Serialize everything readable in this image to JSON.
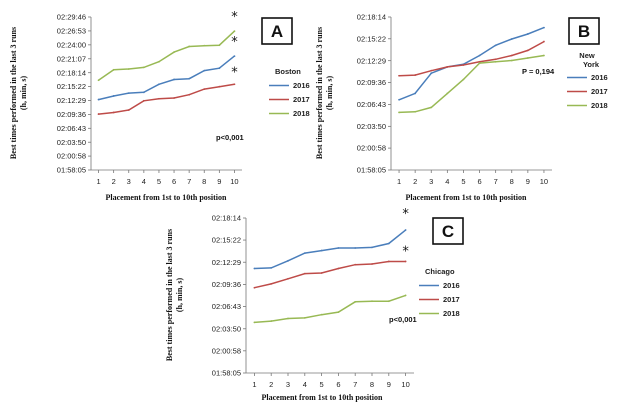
{
  "colors": {
    "2016": "#4a7ebb",
    "2017": "#be4b48",
    "2018": "#98b954"
  },
  "chart_data": [
    {
      "type": "line",
      "panel_label": "A",
      "legend_title": "Boston",
      "annotation": "p<0,001",
      "xlabel": "Placement from 1st to 10th position",
      "ylabel": "Best times performed in the last 3 runs (h, min, s)",
      "y_ticks": [
        "01:58:05",
        "02:00:58",
        "02:03:50",
        "02:06:43",
        "02:09:36",
        "02:12:29",
        "02:15:22",
        "02:18:14",
        "02:21:07",
        "02:24:00",
        "02:26:53",
        "02:29:46"
      ],
      "x": [
        1,
        2,
        3,
        4,
        5,
        6,
        7,
        8,
        9,
        10
      ],
      "ylim": [
        "01:58:05",
        "02:29:46"
      ],
      "series": [
        {
          "name": "2016",
          "values": [
            "02:12:40",
            "02:13:25",
            "02:14:00",
            "02:14:10",
            "02:15:50",
            "02:16:50",
            "02:17:00",
            "02:18:40",
            "02:19:10",
            "02:21:40"
          ],
          "star": true
        },
        {
          "name": "2017",
          "values": [
            "02:09:40",
            "02:10:00",
            "02:10:30",
            "02:12:25",
            "02:12:50",
            "02:13:00",
            "02:13:40",
            "02:14:50",
            "02:15:20",
            "02:15:50"
          ],
          "star": true
        },
        {
          "name": "2018",
          "values": [
            "02:16:40",
            "02:18:50",
            "02:19:00",
            "02:19:20",
            "02:20:30",
            "02:22:30",
            "02:23:40",
            "02:23:50",
            "02:23:55",
            "02:26:50"
          ],
          "star": true
        }
      ]
    },
    {
      "type": "line",
      "panel_label": "B",
      "legend_title": "New York",
      "annotation": "P = 0,194",
      "xlabel": "Placement from 1st to 10th position",
      "ylabel": "Best times performed in the last 3 runs (h, min, s)",
      "y_ticks": [
        "01:58:05",
        "02:00:58",
        "02:03:50",
        "02:06:43",
        "02:09:36",
        "02:12:29",
        "02:15:22",
        "02:18:14"
      ],
      "x": [
        1,
        2,
        3,
        4,
        5,
        6,
        7,
        8,
        9,
        10
      ],
      "ylim": [
        "01:58:05",
        "02:18:14"
      ],
      "series": [
        {
          "name": "2016",
          "values": [
            "02:07:20",
            "02:08:10",
            "02:10:50",
            "02:11:40",
            "02:12:00",
            "02:13:10",
            "02:14:30",
            "02:15:20",
            "02:16:00",
            "02:16:50"
          ],
          "star": false
        },
        {
          "name": "2017",
          "values": [
            "02:10:30",
            "02:10:35",
            "02:11:10",
            "02:11:40",
            "02:11:55",
            "02:12:20",
            "02:12:40",
            "02:13:10",
            "02:13:50",
            "02:15:00"
          ],
          "star": false
        },
        {
          "name": "2018",
          "values": [
            "02:05:40",
            "02:05:45",
            "02:06:20",
            "02:08:10",
            "02:10:00",
            "02:12:10",
            "02:12:20",
            "02:12:30",
            "02:12:50",
            "02:13:10"
          ],
          "star": false
        }
      ]
    },
    {
      "type": "line",
      "panel_label": "C",
      "legend_title": "Chicago",
      "annotation": "p<0,001",
      "xlabel": "Placement from 1st to 10th position",
      "ylabel": "Best times performed in the last 3 runs (h, min, s)",
      "y_ticks": [
        "01:58:05",
        "02:00:58",
        "02:03:50",
        "02:06:43",
        "02:09:36",
        "02:12:29",
        "02:15:22",
        "02:18:14"
      ],
      "x": [
        1,
        2,
        3,
        4,
        5,
        6,
        7,
        8,
        9,
        10
      ],
      "ylim": [
        "01:58:05",
        "02:18:14"
      ],
      "series": [
        {
          "name": "2016",
          "values": [
            "02:11:40",
            "02:11:45",
            "02:12:40",
            "02:13:40",
            "02:14:00",
            "02:14:20",
            "02:14:20",
            "02:14:25",
            "02:14:55",
            "02:16:40"
          ],
          "star": true
        },
        {
          "name": "2017",
          "values": [
            "02:09:10",
            "02:09:40",
            "02:10:20",
            "02:11:00",
            "02:11:05",
            "02:11:40",
            "02:12:10",
            "02:12:15",
            "02:12:35",
            "02:12:35"
          ],
          "star": true
        },
        {
          "name": "2018",
          "values": [
            "02:04:40",
            "02:04:50",
            "02:05:10",
            "02:05:15",
            "02:05:40",
            "02:06:00",
            "02:07:20",
            "02:07:25",
            "02:07:25",
            "02:08:10"
          ],
          "star": false
        }
      ]
    }
  ]
}
